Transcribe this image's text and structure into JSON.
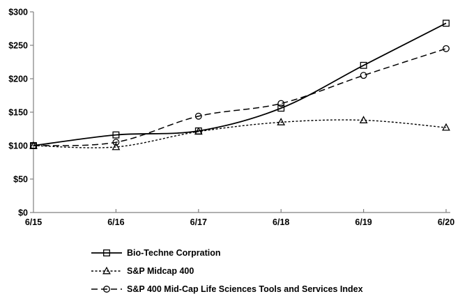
{
  "chart_data": {
    "type": "line",
    "title": "",
    "categories": [
      "6/15",
      "6/16",
      "6/17",
      "6/18",
      "6/19",
      "6/20"
    ],
    "series": [
      {
        "name": "Bio-Techne Corpration",
        "values": [
          100,
          116,
          122,
          156,
          220,
          283
        ],
        "line": "solid",
        "marker": "square"
      },
      {
        "name": "S&P Midcap 400",
        "values": [
          100,
          98,
          121,
          135,
          138,
          127
        ],
        "line": "dotted",
        "marker": "triangle"
      },
      {
        "name": "S&P 400 Mid-Cap Life Sciences Tools and Services Index",
        "values": [
          100,
          105,
          144,
          163,
          205,
          245
        ],
        "line": "dashed",
        "marker": "circle"
      }
    ],
    "xlabel": "",
    "ylabel": "",
    "ylim": [
      0,
      300
    ],
    "ytick_interval": 50,
    "ytick_labels": [
      "$0",
      "$50",
      "$100",
      "$150",
      "$200",
      "$250",
      "$300"
    ],
    "grid": false,
    "legend_position": "bottom-left",
    "colors": {
      "series_line": "#000000",
      "axis": "#808080",
      "text": "#000000",
      "background": "#ffffff"
    }
  }
}
